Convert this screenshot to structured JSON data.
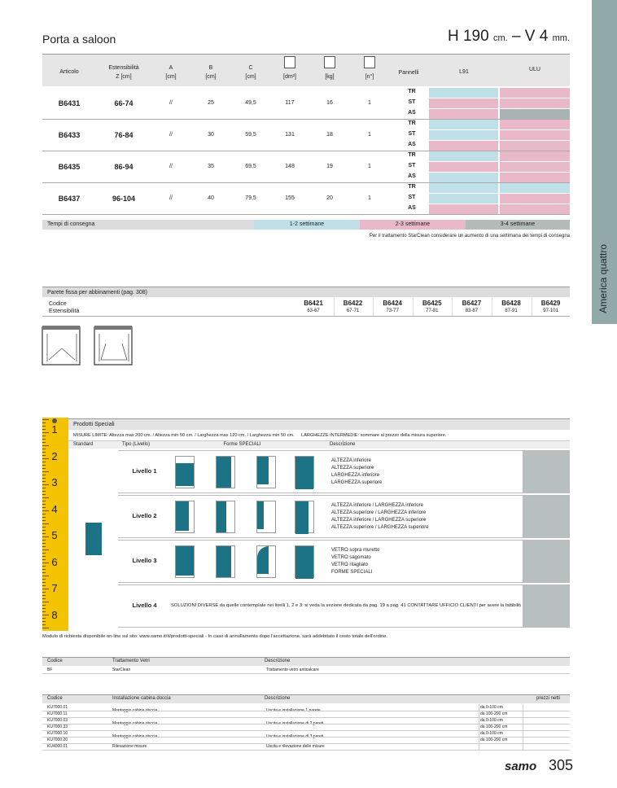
{
  "header": {
    "title": "Porta a saloon",
    "height": "H 190",
    "height_unit": "cm.",
    "thickness": "– V 4",
    "thickness_unit": "mm."
  },
  "side_tab": "America quattro",
  "main_table": {
    "headers": {
      "article": "Articolo",
      "ext": [
        "Estensibilità",
        "Z [cm]"
      ],
      "a": [
        "A",
        "[cm]"
      ],
      "b": [
        "B",
        "[cm]"
      ],
      "c": [
        "C",
        "[cm]"
      ],
      "area": "[dm²]",
      "weight": "[kg]",
      "count": "[n°]",
      "panels": "Pannelli",
      "l91": "L91",
      "ulu": "ULU"
    },
    "rows": [
      {
        "article": "B6431",
        "ext": "66-74",
        "a": "//",
        "b": "25",
        "c": "49,5",
        "area": "117",
        "weight": "16",
        "count": "1",
        "panels": [
          {
            "type": "TR",
            "l91": "#bfe0e8",
            "ulu": "#eab9c9"
          },
          {
            "type": "ST",
            "l91": "#eab9c9",
            "ulu": "#eab9c9"
          },
          {
            "type": "AS",
            "l91": "#eab9c9",
            "ulu": "#a9b3b3"
          }
        ]
      },
      {
        "article": "B6433",
        "ext": "76-84",
        "a": "//",
        "b": "30",
        "c": "59,5",
        "area": "131",
        "weight": "18",
        "count": "1",
        "panels": [
          {
            "type": "TR",
            "l91": "#bfe0e8",
            "ulu": "#eab9c9"
          },
          {
            "type": "ST",
            "l91": "#bfe0e8",
            "ulu": "#eab9c9"
          },
          {
            "type": "AS",
            "l91": "#eab9c9",
            "ulu": "#eab9c9"
          }
        ]
      },
      {
        "article": "B6435",
        "ext": "86-94",
        "a": "//",
        "b": "35",
        "c": "69,5",
        "area": "148",
        "weight": "19",
        "count": "1",
        "panels": [
          {
            "type": "TR",
            "l91": "#bfe0e8",
            "ulu": "#eab9c9"
          },
          {
            "type": "ST",
            "l91": "#eab9c9",
            "ulu": "#eab9c9"
          },
          {
            "type": "AS",
            "l91": "#bfe0e8",
            "ulu": "#eab9c9"
          }
        ]
      },
      {
        "article": "B6437",
        "ext": "96-104",
        "a": "//",
        "b": "40",
        "c": "79,5",
        "area": "155",
        "weight": "20",
        "count": "1",
        "panels": [
          {
            "type": "TR",
            "l91": "#bfe0e8",
            "ulu": "#bfe0e8"
          },
          {
            "type": "ST",
            "l91": "#bfe0e8",
            "ulu": "#eab9c9"
          },
          {
            "type": "AS",
            "l91": "#eab9c9",
            "ulu": "#eab9c9"
          }
        ]
      }
    ]
  },
  "delivery": {
    "label": "Tempi di consegna",
    "options": [
      {
        "text": "1-2 settimane",
        "color": "#bfe0e8"
      },
      {
        "text": "2-3 settimane",
        "color": "#eab9c9"
      },
      {
        "text": "3-4 settimane",
        "color": "#b3bbbb"
      }
    ],
    "note": "Per il trattamento StarClean considerare un aumento di una settimana dei tempi di consegna"
  },
  "fixed_wall": {
    "title": "Parete fissa per abbinamenti (pag. 308)",
    "code_label": "Codice",
    "ext_label": "Estensibilità",
    "items": [
      {
        "code": "B6421",
        "ext": "63-67"
      },
      {
        "code": "B6422",
        "ext": "67-71"
      },
      {
        "code": "B6424",
        "ext": "73-77"
      },
      {
        "code": "B6425",
        "ext": "77-81"
      },
      {
        "code": "B6427",
        "ext": "83-87"
      },
      {
        "code": "B6428",
        "ext": "87-91"
      },
      {
        "code": "B6429",
        "ext": "97-101"
      }
    ]
  },
  "special": {
    "ruler": [
      "1",
      "2",
      "3",
      "4",
      "5",
      "6",
      "7",
      "8"
    ],
    "title": "Prodotti Speciali",
    "limits": "MISURE LIMITE: Altezza max 200 cm. / Altezza min 50 cm. / Larghezza max 120 cm. / Larghezza min 50 cm.",
    "intermediate": "LARGHEZZE INTERMEDIE: sommare al prezzo della misura superiore.",
    "headers": [
      "Standard",
      "Tipo (Livello)",
      "Forme SPECIALI",
      "Descrizione"
    ],
    "levels": [
      {
        "name": "Livello 1",
        "desc": [
          "ALTEZZA inferiore",
          "ALTEZZA superiore",
          "LARGHEZZA inferiore",
          "LARGHEZZA superiore"
        ]
      },
      {
        "name": "Livello 2",
        "desc": [
          "ALTEZZA inferiore / LARGHEZZA inferiore",
          "ALTEZZA superiore / LARGHEZZA inferiore",
          "ALTEZZA inferiore / LARGHEZZA superiore",
          "ALTEZZA superiore / LARGHEZZA superiore"
        ]
      },
      {
        "name": "Livello 3",
        "desc": [
          "VETRO sopra muretto",
          "VETRO sagomato",
          "VETRO ritagliato",
          "FORME SPECIALI"
        ]
      },
      {
        "name": "Livello 4",
        "desc": [
          "SOLUZIONI DIVERSE da quelle contemplate nei livelli 1, 2 e 3: si veda la sezione dedicata da pag. 19 a pag. 41 CONTATTARE UFFICIO CLIENTI per avere la fattibilità e il prezzo"
        ]
      }
    ],
    "note": "Modulo di richiesta disponibile on-line sul sito: www.samo.it/it/prodotti-speciali - In caso di annullamento dopo l'accettazione, sarà addebitato il costo totale dell'ordine."
  },
  "treatment": {
    "headers": [
      "Codice",
      "Trattamento Vetri",
      "Descrizione"
    ],
    "rows": [
      [
        "BF",
        "StarClean",
        "Trattamento vetro anticalcare"
      ]
    ]
  },
  "installation": {
    "headers": [
      "Codice",
      "Installazione cabina doccia",
      "Descrizione",
      "prezzi netti"
    ],
    "groups": [
      {
        "codes": [
          "KU7000.01",
          "KU7000.11"
        ],
        "name": "Montaggio cabina doccia",
        "desc": "Uscita e installazione 1 parete",
        "ranges": [
          "da 0-100 cm",
          "da 100-200 cm"
        ]
      },
      {
        "codes": [
          "KU7000.03",
          "KU7000.33"
        ],
        "name": "Montaggio cabina doccia",
        "desc": "Uscita e installazione di 2 pareti",
        "ranges": [
          "da 0-100 cm",
          "da 100-200 cm"
        ]
      },
      {
        "codes": [
          "KU7000.10",
          "KU7000.20"
        ],
        "name": "Montaggio cabina doccia",
        "desc": "Uscita e installazione di 3 pareti",
        "ranges": [
          "da 0-100 cm",
          "da 100-200 cm"
        ]
      },
      {
        "codes": [
          "KU4000.01"
        ],
        "name": "Rilevazione misure",
        "desc": "Uscita e rilevazione delle misure",
        "ranges": []
      }
    ]
  },
  "footer": {
    "brand": "samo",
    "page": "305"
  }
}
